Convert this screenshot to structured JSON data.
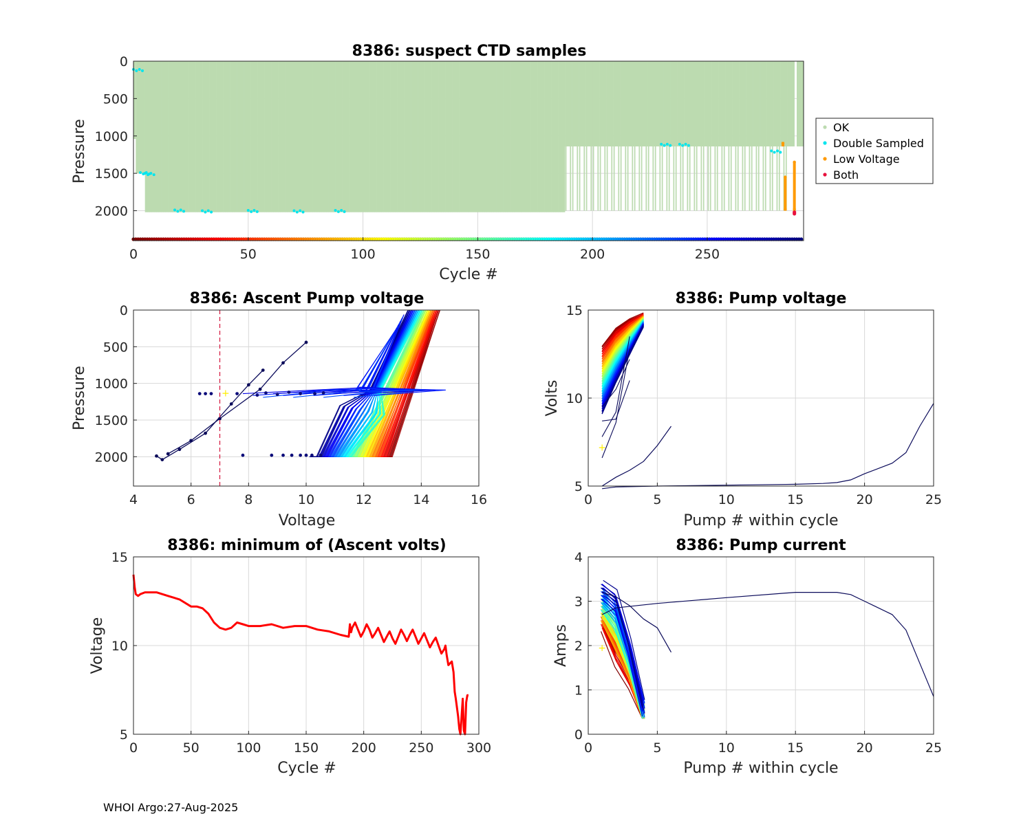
{
  "footer": "WHOI Argo:27-Aug-2025",
  "colors": {
    "ok": "#bcdbb0",
    "double_sampled": "#00e5ee",
    "low_voltage": "#ff9a00",
    "both": "#e8113d",
    "min_volt_line": "#ff0000",
    "threshold": "#d4143c",
    "marker": "#ffee00"
  },
  "chart_data": [
    {
      "id": "suspect",
      "type": "scatter",
      "title": "8386: suspect CTD samples",
      "xlabel": "Cycle #",
      "ylabel": "Pressure",
      "xlim": [
        0,
        292
      ],
      "ylim": [
        2400,
        0
      ],
      "xticks": [
        0,
        50,
        100,
        150,
        200,
        250
      ],
      "yticks": [
        0,
        500,
        1000,
        1500,
        2000
      ],
      "legend": {
        "position": "right",
        "entries": [
          "OK",
          "Double Sampled",
          "Low Voltage",
          "Both"
        ]
      },
      "ok_profiles": {
        "cycles_full_depth": [
          5,
          187
        ],
        "max_pressure_full": 2020,
        "cycles_park_depth": [
          188,
          285
        ],
        "max_pressure_park": 1140,
        "gap_cycles": [
          288
        ]
      },
      "double_sampled": [
        [
          0,
          110
        ],
        [
          3,
          1490
        ],
        [
          5,
          1500
        ],
        [
          18,
          1990
        ],
        [
          30,
          2000
        ],
        [
          50,
          1995
        ],
        [
          70,
          2000
        ],
        [
          88,
          1995
        ],
        [
          230,
          1110
        ],
        [
          238,
          1110
        ],
        [
          278,
          1200
        ]
      ],
      "low_voltage": [
        [
          283,
          1100
        ],
        [
          284,
          1550
        ],
        [
          284,
          1980
        ],
        [
          288,
          1350
        ],
        [
          288,
          1980
        ]
      ],
      "both": [
        [
          288,
          2020
        ],
        [
          288,
          2040
        ]
      ],
      "cycle_colorbar": {
        "from": 0,
        "to": 291,
        "colormap": "jet-reversed"
      }
    },
    {
      "id": "ascent_volt",
      "type": "line",
      "title": "8386: Ascent Pump voltage",
      "xlabel": "Voltage",
      "ylabel": "Pressure",
      "xlim": [
        4,
        16
      ],
      "ylim": [
        2400,
        0
      ],
      "xticks": [
        4,
        6,
        8,
        10,
        12,
        14,
        16
      ],
      "yticks": [
        0,
        500,
        1000,
        1500,
        2000
      ],
      "threshold_voltage": 7,
      "profile_families": [
        {
          "name": "early cycles",
          "bottom_voltage": [
            12.6,
            13.0
          ],
          "top_voltage": [
            14.2,
            14.6
          ],
          "bottom_pressure": 2000
        },
        {
          "name": "late cycles",
          "bottom_voltage": [
            10.0,
            12.0
          ],
          "top_voltage": [
            13.2,
            14.2
          ],
          "bottom_pressure": 2000
        }
      ],
      "final_cycles": [
        {
          "voltage": [
            4.8,
            5.0,
            5.6,
            6.5,
            7.4,
            8.0,
            8.5
          ],
          "pressure": [
            1990,
            2040,
            1900,
            1680,
            1280,
            1020,
            820
          ]
        },
        {
          "voltage": [
            5.2,
            6.0,
            7.0,
            8.4,
            9.2,
            10.0
          ],
          "pressure": [
            1960,
            1780,
            1480,
            1080,
            720,
            440
          ]
        }
      ],
      "marker": [
        7.2,
        1130
      ]
    },
    {
      "id": "pump_volt",
      "type": "line",
      "title": "8386: Pump voltage",
      "xlabel": "Pump # within cycle",
      "ylabel": "Volts",
      "xlim": [
        0,
        25
      ],
      "ylim": [
        5,
        15
      ],
      "xticks": [
        0,
        5,
        10,
        15,
        20,
        25
      ],
      "yticks": [
        5,
        10,
        15
      ],
      "typical_cycle": {
        "pump": [
          1,
          2,
          3,
          4
        ],
        "volts_first": [
          12.9,
          13.9,
          14.4,
          14.7
        ],
        "volts_last": [
          9.0,
          10.8,
          12.4,
          14.0
        ]
      },
      "long_cycles": [
        {
          "pump": [
            1,
            2,
            3,
            4,
            5,
            6
          ],
          "volts": [
            5.0,
            5.5,
            5.9,
            6.4,
            7.3,
            8.4
          ]
        },
        {
          "pump": [
            1,
            2,
            5,
            10,
            15,
            17,
            18,
            19,
            20,
            22,
            23,
            24,
            25
          ],
          "volts": [
            4.85,
            4.95,
            5.0,
            5.05,
            5.1,
            5.15,
            5.2,
            5.35,
            5.7,
            6.3,
            6.9,
            8.4,
            9.7
          ]
        }
      ],
      "marker": [
        1,
        7.2
      ]
    },
    {
      "id": "min_volt",
      "type": "line",
      "title": "8386: minimum of (Ascent volts)",
      "xlabel": "Cycle #",
      "ylabel": "Voltage",
      "xlim": [
        0,
        300
      ],
      "ylim": [
        5,
        15
      ],
      "xticks": [
        0,
        50,
        100,
        150,
        200,
        250,
        300
      ],
      "yticks": [
        5,
        10,
        15
      ],
      "x": [
        0,
        1,
        2,
        4,
        6,
        10,
        15,
        20,
        30,
        40,
        50,
        55,
        60,
        65,
        70,
        75,
        80,
        85,
        90,
        95,
        100,
        110,
        120,
        130,
        140,
        150,
        160,
        170,
        180,
        187,
        188,
        190,
        195,
        200,
        205,
        210,
        215,
        220,
        225,
        230,
        235,
        240,
        245,
        250,
        255,
        260,
        265,
        270,
        272,
        275,
        278,
        280,
        282,
        283,
        284,
        285,
        286,
        287,
        288,
        289,
        290,
        291
      ],
      "y": [
        14.0,
        13.3,
        12.9,
        12.8,
        12.9,
        13.0,
        13.0,
        13.0,
        12.8,
        12.6,
        12.2,
        12.2,
        12.1,
        11.8,
        11.3,
        11.0,
        10.9,
        11.0,
        11.3,
        11.2,
        11.1,
        11.1,
        11.2,
        11.0,
        11.1,
        11.1,
        10.9,
        10.8,
        10.6,
        10.5,
        11.2,
        11.0,
        10.9,
        10.8,
        10.9,
        10.7,
        10.6,
        10.5,
        10.4,
        10.5,
        10.6,
        10.6,
        10.5,
        10.4,
        10.3,
        10.2,
        10.0,
        9.8,
        9.5,
        9.0,
        8.5,
        7.0,
        6.0,
        5.3,
        5.0,
        6.0,
        7.0,
        5.2,
        5.0,
        6.8,
        7.2,
        7.2
      ]
    },
    {
      "id": "pump_current",
      "type": "line",
      "title": "8386: Pump current",
      "xlabel": "Pump # within cycle",
      "ylabel": "Amps",
      "xlim": [
        0,
        25
      ],
      "ylim": [
        0,
        4
      ],
      "xticks": [
        0,
        5,
        10,
        15,
        20,
        25
      ],
      "yticks": [
        0,
        1,
        2,
        3,
        4
      ],
      "typical_cycle": {
        "pump": [
          1,
          2,
          3,
          4
        ],
        "amps_first": [
          3.3,
          3.1,
          2.0,
          0.6
        ],
        "amps_last": [
          2.5,
          1.7,
          1.2,
          0.4
        ]
      },
      "long_cycles": [
        {
          "pump": [
            1,
            2,
            3,
            4,
            5,
            6
          ],
          "amps": [
            3.2,
            3.1,
            2.9,
            2.6,
            2.4,
            1.85
          ]
        },
        {
          "pump": [
            1,
            2,
            5,
            10,
            15,
            17,
            18,
            19,
            20,
            22,
            23,
            24,
            25
          ],
          "amps": [
            2.7,
            2.85,
            2.95,
            3.08,
            3.2,
            3.2,
            3.2,
            3.15,
            3.0,
            2.7,
            2.35,
            1.6,
            0.85
          ]
        }
      ],
      "marker": [
        1,
        1.95
      ]
    }
  ]
}
